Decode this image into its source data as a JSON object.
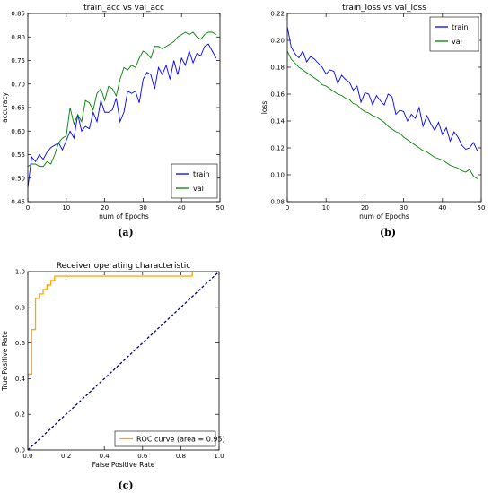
{
  "chart_data": [
    {
      "id": "a",
      "type": "line",
      "caption": "(a)",
      "title": "train_acc vs val_acc",
      "xlabel": "num of Epochs",
      "ylabel": "accuracy",
      "xlim": [
        0,
        50
      ],
      "ylim": [
        0.45,
        0.85
      ],
      "xticks": [
        0,
        10,
        20,
        30,
        40,
        50
      ],
      "yticks": [
        0.45,
        0.5,
        0.55,
        0.6,
        0.65,
        0.7,
        0.75,
        0.8,
        0.85
      ],
      "ytick_labels": [
        "0.45",
        "0.50",
        "0.55",
        "0.60",
        "0.65",
        "0.70",
        "0.75",
        "0.80",
        "0.85"
      ],
      "legend": "bottom-right",
      "series": [
        {
          "name": "train",
          "color": "#0000ff",
          "x": [
            0,
            1,
            2,
            3,
            4,
            5,
            6,
            7,
            8,
            9,
            10,
            11,
            12,
            13,
            14,
            15,
            16,
            17,
            18,
            19,
            20,
            21,
            22,
            23,
            24,
            25,
            26,
            27,
            28,
            29,
            30,
            31,
            32,
            33,
            34,
            35,
            36,
            37,
            38,
            39,
            40,
            41,
            42,
            43,
            44,
            45,
            46,
            47,
            48,
            49
          ],
          "y": [
            0.48,
            0.545,
            0.535,
            0.55,
            0.54,
            0.555,
            0.565,
            0.57,
            0.575,
            0.56,
            0.58,
            0.6,
            0.585,
            0.635,
            0.6,
            0.61,
            0.605,
            0.64,
            0.62,
            0.665,
            0.64,
            0.64,
            0.645,
            0.67,
            0.62,
            0.64,
            0.685,
            0.68,
            0.685,
            0.66,
            0.71,
            0.725,
            0.72,
            0.69,
            0.735,
            0.72,
            0.74,
            0.71,
            0.75,
            0.72,
            0.755,
            0.74,
            0.77,
            0.745,
            0.765,
            0.76,
            0.78,
            0.785,
            0.77,
            0.755
          ]
        },
        {
          "name": "val",
          "color": "#008000",
          "x": [
            0,
            1,
            2,
            3,
            4,
            5,
            6,
            7,
            8,
            9,
            10,
            11,
            12,
            13,
            14,
            15,
            16,
            17,
            18,
            19,
            20,
            21,
            22,
            23,
            24,
            25,
            26,
            27,
            28,
            29,
            30,
            31,
            32,
            33,
            34,
            35,
            36,
            37,
            38,
            39,
            40,
            41,
            42,
            43,
            44,
            45,
            46,
            47,
            48,
            49
          ],
          "y": [
            0.525,
            0.53,
            0.53,
            0.525,
            0.525,
            0.535,
            0.53,
            0.55,
            0.575,
            0.585,
            0.59,
            0.65,
            0.615,
            0.635,
            0.62,
            0.665,
            0.66,
            0.645,
            0.68,
            0.69,
            0.665,
            0.695,
            0.69,
            0.675,
            0.71,
            0.735,
            0.73,
            0.74,
            0.735,
            0.755,
            0.77,
            0.765,
            0.755,
            0.78,
            0.78,
            0.775,
            0.78,
            0.785,
            0.79,
            0.8,
            0.805,
            0.81,
            0.805,
            0.81,
            0.8,
            0.795,
            0.805,
            0.81,
            0.81,
            0.805
          ]
        }
      ]
    },
    {
      "id": "b",
      "type": "line",
      "caption": "(b)",
      "title": "train_loss vs val_loss",
      "xlabel": "num of Epochs",
      "ylabel": "loss",
      "xlim": [
        0,
        50
      ],
      "ylim": [
        0.08,
        0.22
      ],
      "xticks": [
        0,
        10,
        20,
        30,
        40,
        50
      ],
      "yticks": [
        0.08,
        0.1,
        0.12,
        0.14,
        0.16,
        0.18,
        0.2,
        0.22
      ],
      "ytick_labels": [
        "0.08",
        "0.10",
        "0.12",
        "0.14",
        "0.16",
        "0.18",
        "0.20",
        "0.22"
      ],
      "legend": "top-right",
      "series": [
        {
          "name": "train",
          "color": "#0000ff",
          "x": [
            0,
            1,
            2,
            3,
            4,
            5,
            6,
            7,
            8,
            9,
            10,
            11,
            12,
            13,
            14,
            15,
            16,
            17,
            18,
            19,
            20,
            21,
            22,
            23,
            24,
            25,
            26,
            27,
            28,
            29,
            30,
            31,
            32,
            33,
            34,
            35,
            36,
            37,
            38,
            39,
            40,
            41,
            42,
            43,
            44,
            45,
            46,
            47,
            48,
            49
          ],
          "y": [
            0.21,
            0.195,
            0.19,
            0.187,
            0.192,
            0.184,
            0.188,
            0.186,
            0.183,
            0.18,
            0.175,
            0.178,
            0.177,
            0.168,
            0.174,
            0.171,
            0.169,
            0.163,
            0.166,
            0.154,
            0.161,
            0.16,
            0.152,
            0.159,
            0.155,
            0.152,
            0.16,
            0.158,
            0.145,
            0.148,
            0.147,
            0.14,
            0.145,
            0.142,
            0.15,
            0.136,
            0.144,
            0.138,
            0.133,
            0.139,
            0.13,
            0.135,
            0.125,
            0.132,
            0.128,
            0.122,
            0.119,
            0.12,
            0.124,
            0.118
          ]
        },
        {
          "name": "val",
          "color": "#008000",
          "x": [
            0,
            1,
            2,
            3,
            4,
            5,
            6,
            7,
            8,
            9,
            10,
            11,
            12,
            13,
            14,
            15,
            16,
            17,
            18,
            19,
            20,
            21,
            22,
            23,
            24,
            25,
            26,
            27,
            28,
            29,
            30,
            31,
            32,
            33,
            34,
            35,
            36,
            37,
            38,
            39,
            40,
            41,
            42,
            43,
            44,
            45,
            46,
            47,
            48,
            49
          ],
          "y": [
            0.192,
            0.186,
            0.183,
            0.18,
            0.178,
            0.176,
            0.174,
            0.172,
            0.17,
            0.167,
            0.166,
            0.164,
            0.162,
            0.16,
            0.159,
            0.157,
            0.156,
            0.153,
            0.152,
            0.149,
            0.147,
            0.146,
            0.144,
            0.143,
            0.141,
            0.139,
            0.136,
            0.134,
            0.132,
            0.131,
            0.128,
            0.126,
            0.124,
            0.122,
            0.12,
            0.118,
            0.117,
            0.115,
            0.113,
            0.112,
            0.111,
            0.109,
            0.107,
            0.106,
            0.105,
            0.103,
            0.102,
            0.104,
            0.099,
            0.097
          ]
        }
      ]
    },
    {
      "id": "c",
      "type": "line",
      "caption": "(c)",
      "title": "Receiver operating characteristic",
      "xlabel": "False Positive Rate",
      "ylabel": "True Positive Rate",
      "xlim": [
        0,
        1
      ],
      "ylim": [
        0,
        1
      ],
      "xticks": [
        0,
        0.2,
        0.4,
        0.6,
        0.8,
        1.0
      ],
      "xtick_labels": [
        "0.0",
        "0.2",
        "0.4",
        "0.6",
        "0.8",
        "1.0"
      ],
      "yticks": [
        0,
        0.2,
        0.4,
        0.6,
        0.8,
        1.0
      ],
      "ytick_labels": [
        "0.0",
        "0.2",
        "0.4",
        "0.6",
        "0.8",
        "1.0"
      ],
      "legend": "bottom-right",
      "series": [
        {
          "name": "ROC curve (area = 0.95)",
          "color": "#ffa500",
          "x": [
            0,
            0,
            0.02,
            0.02,
            0.04,
            0.04,
            0.06,
            0.06,
            0.08,
            0.08,
            0.1,
            0.1,
            0.12,
            0.12,
            0.14,
            0.14,
            0.16,
            0.16,
            0.86,
            0.86,
            1.0
          ],
          "y": [
            0,
            0.425,
            0.425,
            0.675,
            0.675,
            0.85,
            0.85,
            0.875,
            0.875,
            0.9,
            0.9,
            0.925,
            0.925,
            0.95,
            0.95,
            0.975,
            0.975,
            0.975,
            0.975,
            1.0,
            1.0
          ]
        },
        {
          "name": "",
          "color": "#000080",
          "dashed": true,
          "x": [
            0,
            1
          ],
          "y": [
            0,
            1
          ]
        }
      ]
    }
  ]
}
